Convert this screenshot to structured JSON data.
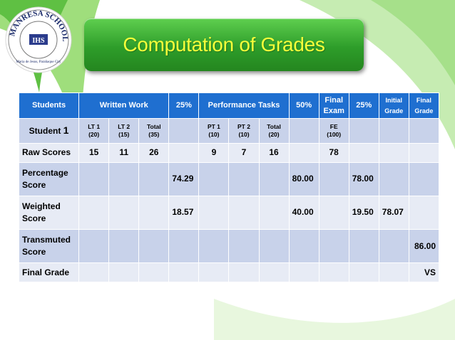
{
  "title": "Computation of Grades",
  "logo": {
    "ring_text": "MANRESA SCHOOL",
    "center_text": "IHS",
    "bottom_text": "Maria de Jesus, Parañaque City",
    "icon": "school-seal-icon"
  },
  "colors": {
    "header_blue": "#1f6fd0",
    "row_light": "#e7ebf5",
    "row_dark": "#c8d2ea",
    "title_green": "#2e9d2a",
    "title_text": "#f6ff3a"
  },
  "table": {
    "header": [
      "Students",
      "Written Work",
      "25%",
      "Performance Tasks",
      "50%",
      "Final Exam",
      "25%",
      "Initial Grade",
      "Final Grade"
    ],
    "subheader": {
      "student": "Student",
      "student_num": "1",
      "lt1": "LT 1",
      "lt1_pts": "(20)",
      "lt2": "LT 2",
      "lt2_pts": "(15)",
      "ww_total": "Total",
      "ww_total_pts": "(35)",
      "pt1": "PT 1",
      "pt1_pts": "(10)",
      "pt2": "PT 2",
      "pt2_pts": "(10)",
      "pt_total": "Total",
      "pt_total_pts": "(20)",
      "fe": "FE",
      "fe_pts": "(100)"
    },
    "rows": {
      "raw": {
        "label": "Raw Scores",
        "lt1": "15",
        "lt2": "11",
        "ww_total": "26",
        "pt1": "9",
        "pt2": "7",
        "pt_total": "16",
        "fe": "78"
      },
      "percentage": {
        "label": "Percentage Score",
        "ww": "74.29",
        "pt": "80.00",
        "fe": "78.00"
      },
      "weighted": {
        "label": "Weighted Score",
        "ww": "18.57",
        "pt": "40.00",
        "fe": "19.50",
        "initial": "78.07"
      },
      "transmuted": {
        "label": "Transmuted Score",
        "final": "86.00"
      },
      "final_grade": {
        "label": "Final Grade",
        "final": "VS"
      }
    }
  }
}
